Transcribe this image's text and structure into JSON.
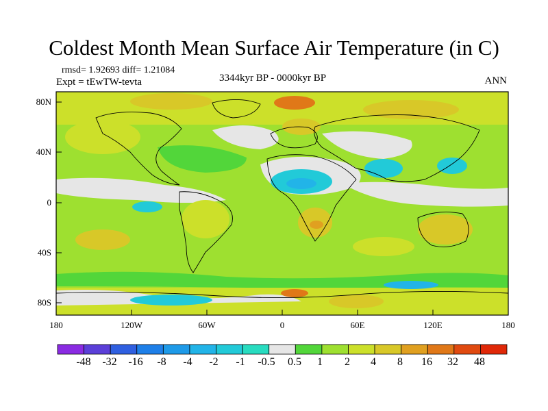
{
  "title": "Coldest Month Mean Surface Air Temperature (in C)",
  "stats": "rmsd= 1.92693 diff= 1.21084",
  "experiment": "Expt = tEwTW-tevta",
  "period": "3344kyr BP - 0000kyr BP",
  "season": "ANN",
  "axes": {
    "lon_labels": [
      "180",
      "120W",
      "60W",
      "0",
      "60E",
      "120E",
      "180"
    ],
    "lat_labels": [
      "80N",
      "40N",
      "0",
      "40S",
      "80S"
    ]
  },
  "colorbar": {
    "labels": [
      "-48",
      "-32",
      "-16",
      "-8",
      "-4",
      "-2",
      "-1",
      "-0.5",
      "0.5",
      "1",
      "2",
      "4",
      "8",
      "16",
      "32",
      "48"
    ],
    "colors": [
      "#8a2be2",
      "#5b3fd8",
      "#2f5fe0",
      "#1e7fe8",
      "#1e9ae8",
      "#22b4e8",
      "#22cad8",
      "#28dcc0",
      "#e6e6e6",
      "#52d63a",
      "#9ee030",
      "#cce02a",
      "#d8c828",
      "#e0a020",
      "#e07818",
      "#e04a10",
      "#e02808"
    ]
  },
  "palette": {
    "land_green": "#9ee030",
    "neutral": "#e6e6e6",
    "cool": "#22b4e8",
    "warm": "#d8c828",
    "hot": "#e07818"
  }
}
